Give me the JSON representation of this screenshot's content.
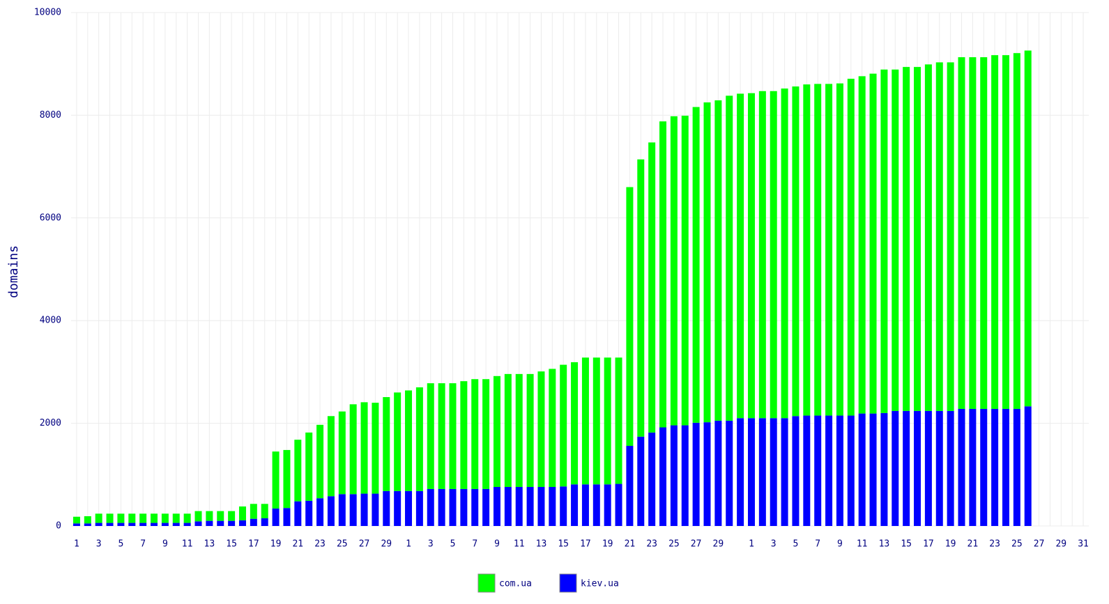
{
  "chart_data": {
    "type": "stacked_bar",
    "y_label": "domains",
    "categories": [
      "1",
      null,
      "3",
      null,
      "5",
      null,
      "7",
      null,
      "9",
      null,
      "11",
      null,
      "13",
      null,
      "15",
      null,
      "17",
      null,
      "19",
      null,
      "21",
      null,
      "23",
      null,
      "25",
      null,
      "27",
      null,
      "29",
      null,
      "1",
      null,
      "3",
      null,
      "5",
      null,
      "7",
      null,
      "9",
      null,
      "11",
      null,
      "13",
      null,
      "15",
      null,
      "17",
      null,
      "19",
      null,
      "21",
      null,
      "23",
      null,
      "25",
      null,
      "27",
      null,
      "29",
      null,
      null,
      "1",
      null,
      "3",
      null,
      "5",
      null,
      "7",
      null,
      "9",
      null,
      "11",
      null,
      "13",
      null,
      "15",
      null,
      "17",
      null,
      "19",
      null,
      "21",
      null,
      "23",
      null,
      "25",
      null,
      "27",
      null,
      "29",
      null,
      "31"
    ],
    "series": [
      {
        "name": "com.ua",
        "color": "#00ff00",
        "values": [
          130,
          140,
          180,
          180,
          180,
          180,
          180,
          180,
          180,
          180,
          180,
          200,
          190,
          190,
          190,
          270,
          290,
          280,
          1110,
          1130,
          1200,
          1330,
          1430,
          1560,
          1610,
          1750,
          1780,
          1770,
          1830,
          1920,
          1960,
          2020,
          2060,
          2060,
          2060,
          2100,
          2140,
          2140,
          2160,
          2200,
          2200,
          2200,
          2250,
          2300,
          2370,
          2380,
          2470,
          2470,
          2470,
          2460,
          5040,
          5400,
          5650,
          5960,
          6020,
          6030,
          6150,
          6230,
          6240,
          6330,
          6320,
          6330,
          6370,
          6370,
          6420,
          6420,
          6450,
          6460,
          6460,
          6470,
          6560,
          6570,
          6620,
          6690,
          6650,
          6700,
          6700,
          6750,
          6790,
          6790,
          6850,
          6850,
          6850,
          6890,
          6890,
          6930,
          6930,
          null,
          null,
          null,
          null,
          null
        ]
      },
      {
        "name": "kiev.ua",
        "color": "#0000ff",
        "values": [
          50,
          50,
          60,
          60,
          60,
          60,
          60,
          60,
          60,
          60,
          60,
          90,
          100,
          100,
          100,
          110,
          140,
          150,
          340,
          350,
          480,
          490,
          540,
          580,
          620,
          620,
          630,
          630,
          680,
          680,
          680,
          680,
          720,
          720,
          720,
          720,
          720,
          720,
          760,
          760,
          760,
          760,
          760,
          760,
          770,
          810,
          810,
          810,
          810,
          820,
          1560,
          1740,
          1820,
          1920,
          1960,
          1960,
          2010,
          2020,
          2050,
          2050,
          2100,
          2100,
          2100,
          2100,
          2100,
          2140,
          2150,
          2150,
          2150,
          2150,
          2150,
          2190,
          2190,
          2200,
          2240,
          2240,
          2240,
          2240,
          2240,
          2240,
          2280,
          2280,
          2280,
          2280,
          2280,
          2280,
          2330,
          null,
          null,
          null,
          null,
          null
        ]
      }
    ],
    "ylim": [
      0,
      10000
    ],
    "yticks": [
      0,
      2000,
      4000,
      6000,
      8000,
      10000
    ],
    "grid": true
  }
}
